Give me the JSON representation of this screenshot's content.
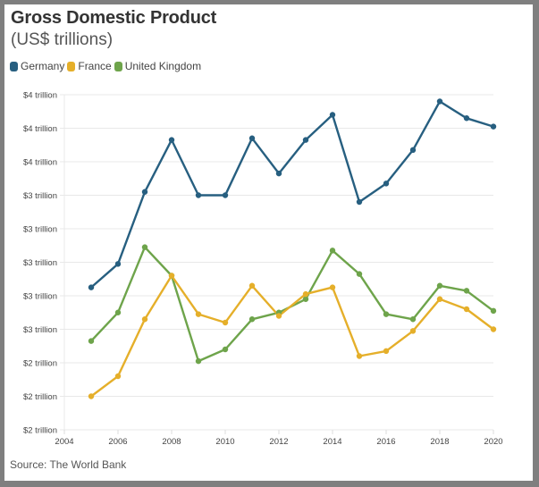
{
  "title": "Gross Domestic Product",
  "subtitle": "(US$ trillions)",
  "source": "Source: The World Bank",
  "colors": {
    "Germany": "#275f80",
    "France": "#e5af2a",
    "United Kingdom": "#6ea44b"
  },
  "chart_data": {
    "type": "line",
    "title": "Gross Domestic Product",
    "subtitle": "(US$ trillions)",
    "xlabel": "",
    "ylabel": "",
    "x": [
      2005,
      2006,
      2007,
      2008,
      2009,
      2010,
      2011,
      2012,
      2013,
      2014,
      2015,
      2016,
      2017,
      2018,
      2019,
      2020
    ],
    "series": [
      {
        "name": "Germany",
        "values": [
          2.85,
          2.99,
          3.42,
          3.73,
          3.4,
          3.4,
          3.74,
          3.53,
          3.73,
          3.88,
          3.36,
          3.47,
          3.67,
          3.96,
          3.86,
          3.81
        ]
      },
      {
        "name": "France",
        "values": [
          2.2,
          2.32,
          2.66,
          2.92,
          2.69,
          2.64,
          2.86,
          2.68,
          2.81,
          2.85,
          2.44,
          2.47,
          2.59,
          2.78,
          2.72,
          2.6
        ]
      },
      {
        "name": "United Kingdom",
        "values": [
          2.53,
          2.7,
          3.09,
          2.92,
          2.41,
          2.48,
          2.66,
          2.7,
          2.78,
          3.07,
          2.93,
          2.69,
          2.66,
          2.86,
          2.83,
          2.71
        ]
      }
    ],
    "xlim": [
      2004,
      2020
    ],
    "ylim": [
      2.0,
      4.0
    ],
    "x_ticks": [
      2004,
      2006,
      2008,
      2010,
      2012,
      2014,
      2016,
      2018,
      2020
    ],
    "x_tick_labels": [
      "2004",
      "2006",
      "2008",
      "2010",
      "2012",
      "2014",
      "2016",
      "2018",
      "2020"
    ],
    "y_ticks": [
      4.0,
      3.8,
      3.6,
      3.4,
      3.2,
      3.0,
      2.8,
      2.6,
      2.4,
      2.2,
      2.0
    ],
    "y_tick_labels": [
      "$4 trillion",
      "$4 trillion",
      "$4 trillion",
      "$3 trillion",
      "$3 trillion",
      "$3 trillion",
      "$3 trillion",
      "$3 trillion",
      "$2 trillion",
      "$2 trillion",
      "$2 trillion"
    ],
    "grid": true,
    "legend": [
      "Germany",
      "France",
      "United Kingdom"
    ],
    "legend_position": "top-left"
  }
}
